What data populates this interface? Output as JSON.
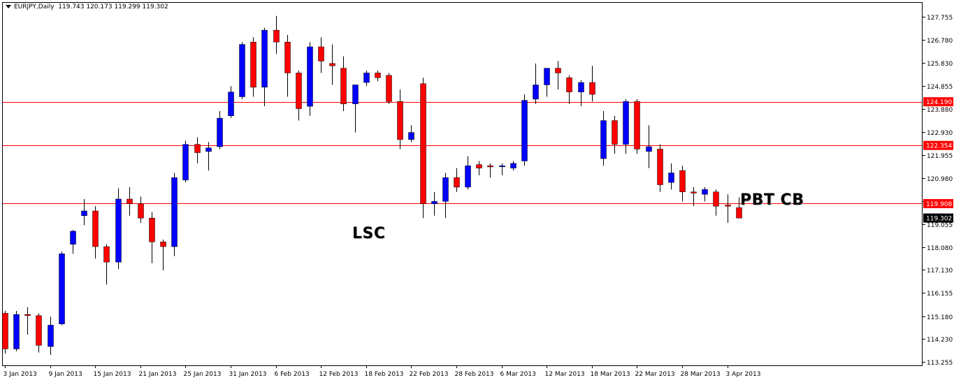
{
  "header": {
    "symbol": "EURJPY,Daily",
    "ohlc": "119.743 120.173 119.299 119.302"
  },
  "annotations": {
    "lsc": "LSC",
    "pbt": "PBT CB"
  },
  "colors": {
    "bull": "#0000ff",
    "bear": "#ff0000",
    "level_line": "#ff0000",
    "price_box": "#ff0000",
    "current_box": "#000000",
    "axis": "#000000"
  },
  "chart_data": {
    "type": "candlestick",
    "symbol": "EURJPY",
    "timeframe": "Daily",
    "ylim": [
      113.11,
      128.35
    ],
    "y_ticks": [
      "127.755",
      "126.780",
      "125.830",
      "124.855",
      "123.880",
      "122.930",
      "121.955",
      "120.980",
      "120.005",
      "119.055",
      "118.080",
      "117.130",
      "116.155",
      "115.180",
      "114.230",
      "113.255"
    ],
    "x_ticks": [
      "3 Jan 2013",
      "9 Jan 2013",
      "15 Jan 2013",
      "21 Jan 2013",
      "25 Jan 2013",
      "31 Jan 2013",
      "6 Feb 2013",
      "12 Feb 2013",
      "18 Feb 2013",
      "22 Feb 2013",
      "28 Feb 2013",
      "6 Mar 2013",
      "12 Mar 2013",
      "18 Mar 2013",
      "22 Mar 2013",
      "28 Mar 2013",
      "3 Apr 2013"
    ],
    "x_tick_index": [
      0,
      4,
      8,
      12,
      16,
      20,
      24,
      28,
      32,
      36,
      40,
      44,
      48,
      52,
      56,
      60,
      64
    ],
    "levels": [
      {
        "price": 124.19,
        "label": "124.190"
      },
      {
        "price": 122.354,
        "label": "122.354"
      },
      {
        "price": 119.908,
        "label": "119.908"
      }
    ],
    "current_price": {
      "price": 119.302,
      "label": "119.302"
    },
    "candles": [
      {
        "o": 115.3,
        "h": 115.4,
        "l": 113.6,
        "c": 113.8
      },
      {
        "o": 113.8,
        "h": 115.4,
        "l": 113.7,
        "c": 115.25
      },
      {
        "o": 115.25,
        "h": 115.55,
        "l": 114.4,
        "c": 115.2
      },
      {
        "o": 115.2,
        "h": 115.3,
        "l": 113.65,
        "c": 113.95
      },
      {
        "o": 113.9,
        "h": 115.15,
        "l": 113.55,
        "c": 114.8
      },
      {
        "o": 114.85,
        "h": 117.9,
        "l": 114.8,
        "c": 117.8
      },
      {
        "o": 118.2,
        "h": 118.8,
        "l": 117.8,
        "c": 118.75
      },
      {
        "o": 119.4,
        "h": 120.1,
        "l": 119.0,
        "c": 119.6
      },
      {
        "o": 119.6,
        "h": 119.8,
        "l": 117.6,
        "c": 118.1
      },
      {
        "o": 118.1,
        "h": 118.2,
        "l": 116.5,
        "c": 117.45
      },
      {
        "o": 117.45,
        "h": 120.55,
        "l": 117.15,
        "c": 120.1
      },
      {
        "o": 120.1,
        "h": 120.6,
        "l": 119.4,
        "c": 119.9
      },
      {
        "o": 119.9,
        "h": 120.2,
        "l": 119.1,
        "c": 119.3
      },
      {
        "o": 119.3,
        "h": 119.55,
        "l": 117.4,
        "c": 118.3
      },
      {
        "o": 118.3,
        "h": 118.4,
        "l": 117.1,
        "c": 118.1
      },
      {
        "o": 118.1,
        "h": 121.2,
        "l": 117.7,
        "c": 121.0
      },
      {
        "o": 120.9,
        "h": 122.55,
        "l": 120.8,
        "c": 122.4
      },
      {
        "o": 122.4,
        "h": 122.7,
        "l": 121.6,
        "c": 122.05
      },
      {
        "o": 122.1,
        "h": 122.5,
        "l": 121.3,
        "c": 122.25
      },
      {
        "o": 122.3,
        "h": 123.8,
        "l": 122.2,
        "c": 123.5
      },
      {
        "o": 123.6,
        "h": 124.85,
        "l": 123.5,
        "c": 124.6
      },
      {
        "o": 124.4,
        "h": 126.7,
        "l": 124.3,
        "c": 126.6
      },
      {
        "o": 126.7,
        "h": 126.9,
        "l": 124.4,
        "c": 124.8
      },
      {
        "o": 124.8,
        "h": 127.3,
        "l": 124.0,
        "c": 127.2
      },
      {
        "o": 127.2,
        "h": 127.8,
        "l": 126.2,
        "c": 126.7
      },
      {
        "o": 126.7,
        "h": 127.0,
        "l": 124.4,
        "c": 125.4
      },
      {
        "o": 125.4,
        "h": 125.5,
        "l": 123.4,
        "c": 123.9
      },
      {
        "o": 124.0,
        "h": 126.7,
        "l": 123.6,
        "c": 126.5
      },
      {
        "o": 126.5,
        "h": 126.9,
        "l": 125.4,
        "c": 125.9
      },
      {
        "o": 125.8,
        "h": 126.6,
        "l": 124.9,
        "c": 125.7
      },
      {
        "o": 125.6,
        "h": 126.1,
        "l": 123.8,
        "c": 124.1
      },
      {
        "o": 124.1,
        "h": 124.9,
        "l": 122.9,
        "c": 124.9
      },
      {
        "o": 125.0,
        "h": 125.5,
        "l": 124.85,
        "c": 125.4
      },
      {
        "o": 125.4,
        "h": 125.5,
        "l": 125.05,
        "c": 125.2
      },
      {
        "o": 125.3,
        "h": 125.4,
        "l": 124.1,
        "c": 124.2
      },
      {
        "o": 124.2,
        "h": 124.7,
        "l": 122.2,
        "c": 122.6
      },
      {
        "o": 122.6,
        "h": 123.2,
        "l": 122.5,
        "c": 122.9
      },
      {
        "o": 124.95,
        "h": 125.2,
        "l": 119.3,
        "c": 119.9
      },
      {
        "o": 119.9,
        "h": 120.4,
        "l": 119.4,
        "c": 120.0
      },
      {
        "o": 120.0,
        "h": 121.2,
        "l": 119.3,
        "c": 121.0
      },
      {
        "o": 121.0,
        "h": 121.4,
        "l": 120.4,
        "c": 120.6
      },
      {
        "o": 120.6,
        "h": 121.9,
        "l": 120.5,
        "c": 121.5
      },
      {
        "o": 121.55,
        "h": 121.7,
        "l": 121.1,
        "c": 121.4
      },
      {
        "o": 121.5,
        "h": 121.6,
        "l": 121.0,
        "c": 121.45
      },
      {
        "o": 121.5,
        "h": 121.6,
        "l": 121.1,
        "c": 121.5
      },
      {
        "o": 121.4,
        "h": 121.7,
        "l": 121.3,
        "c": 121.6
      },
      {
        "o": 121.7,
        "h": 124.5,
        "l": 121.5,
        "c": 124.25
      },
      {
        "o": 124.3,
        "h": 125.8,
        "l": 124.1,
        "c": 124.9
      },
      {
        "o": 124.9,
        "h": 125.6,
        "l": 124.4,
        "c": 125.6
      },
      {
        "o": 125.6,
        "h": 125.9,
        "l": 124.7,
        "c": 125.4
      },
      {
        "o": 125.2,
        "h": 125.3,
        "l": 124.1,
        "c": 124.6
      },
      {
        "o": 124.6,
        "h": 125.1,
        "l": 124.0,
        "c": 125.0
      },
      {
        "o": 125.0,
        "h": 125.7,
        "l": 124.2,
        "c": 124.5
      },
      {
        "o": 121.8,
        "h": 123.8,
        "l": 121.5,
        "c": 123.4
      },
      {
        "o": 123.4,
        "h": 123.6,
        "l": 122.0,
        "c": 122.4
      },
      {
        "o": 122.4,
        "h": 124.3,
        "l": 122.0,
        "c": 124.2
      },
      {
        "o": 124.2,
        "h": 124.3,
        "l": 122.0,
        "c": 122.2
      },
      {
        "o": 122.1,
        "h": 123.2,
        "l": 121.4,
        "c": 122.3
      },
      {
        "o": 122.2,
        "h": 122.4,
        "l": 120.4,
        "c": 120.7
      },
      {
        "o": 120.8,
        "h": 121.6,
        "l": 120.5,
        "c": 121.2
      },
      {
        "o": 121.3,
        "h": 121.5,
        "l": 120.0,
        "c": 120.4
      },
      {
        "o": 120.4,
        "h": 120.6,
        "l": 119.8,
        "c": 120.35
      },
      {
        "o": 120.3,
        "h": 120.6,
        "l": 120.0,
        "c": 120.5
      },
      {
        "o": 120.4,
        "h": 120.5,
        "l": 119.4,
        "c": 119.8
      },
      {
        "o": 119.85,
        "h": 120.3,
        "l": 119.1,
        "c": 119.8
      },
      {
        "o": 119.74,
        "h": 120.17,
        "l": 119.3,
        "c": 119.3
      }
    ]
  }
}
